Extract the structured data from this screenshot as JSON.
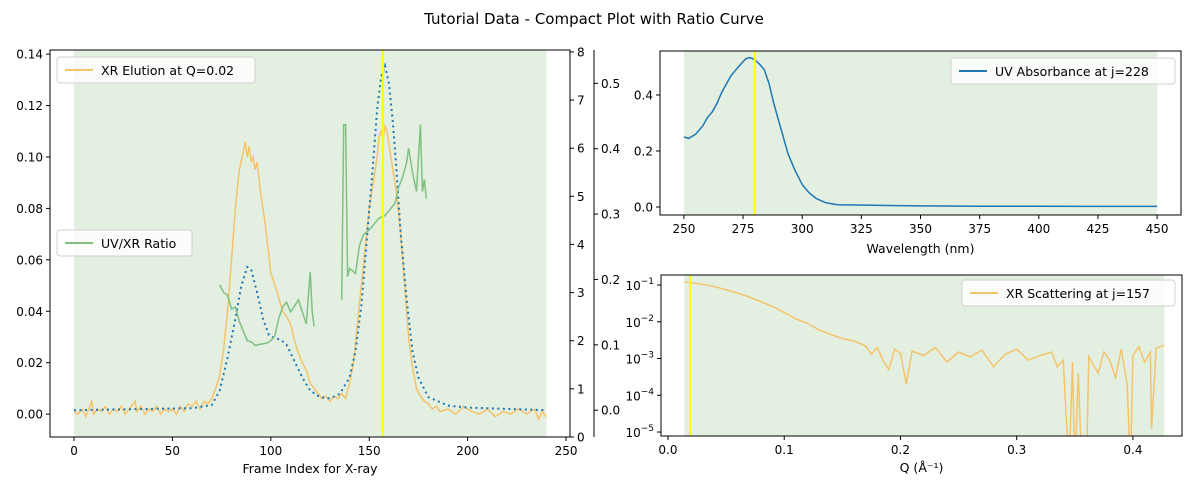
{
  "title": "Tutorial Data - Compact Plot with Ratio Curve",
  "colors": {
    "shade": "#e3efe1",
    "vline": "#ffff00",
    "xr": "#f5c36a",
    "uv": "#1f77b4",
    "ratio": "#80c080"
  },
  "chart_data": [
    {
      "type": "line",
      "xlabel": "Frame Index for X-ray",
      "xlim": [
        -12.2,
        252
      ],
      "ylim": [
        -0.0089,
        0.1416
      ],
      "xticks": [
        0,
        50,
        100,
        150,
        200,
        250
      ],
      "yticks": [
        "0.00",
        "0.02",
        "0.04",
        "0.06",
        "0.08",
        "0.10",
        "0.12",
        "0.14"
      ],
      "shaded_x": [
        0,
        240
      ],
      "vline_x": 157,
      "twin_axes": [
        {
          "name": "ratio",
          "ylim": [
            0,
            8.04
          ],
          "yticks": [
            "0",
            "1",
            "2",
            "3",
            "4",
            "5",
            "6",
            "7",
            "8"
          ]
        },
        {
          "name": "uv",
          "ylim": [
            -0.041,
            0.551
          ],
          "yticks": [
            "0.0",
            "0.1",
            "0.2",
            "0.3",
            "0.4",
            "0.5"
          ]
        }
      ],
      "series": [
        {
          "name": "XR Elution at Q=0.02",
          "axis": "left",
          "style": "solid",
          "x": [
            0,
            2,
            4,
            6,
            8,
            9,
            10,
            12,
            14,
            16,
            18,
            20,
            22,
            24,
            26,
            28,
            30,
            31,
            32,
            34,
            36,
            38,
            40,
            42,
            44,
            46,
            48,
            50,
            52,
            54,
            56,
            58,
            60,
            62,
            64,
            66,
            68,
            70,
            72,
            74,
            76,
            78,
            80,
            82,
            84,
            86,
            87,
            88,
            89,
            90,
            91,
            92,
            93,
            95,
            97,
            100,
            103,
            106,
            108,
            110,
            113,
            116,
            118,
            120,
            122,
            124,
            126,
            128,
            130,
            132,
            134,
            136,
            138,
            140,
            142,
            144,
            146,
            148,
            150,
            152,
            154,
            155,
            156,
            157,
            158,
            159,
            160,
            162,
            164,
            166,
            168,
            170,
            172,
            174,
            176,
            178,
            180,
            182,
            184,
            186,
            190,
            194,
            198,
            202,
            206,
            210,
            214,
            218,
            222,
            226,
            230,
            234,
            236,
            238,
            240
          ],
          "y": [
            0.001,
            0.0,
            0.002,
            -0.001,
            0.003,
            0.005,
            0.0,
            0.002,
            0.001,
            0.003,
            0.0,
            0.002,
            0.001,
            0.003,
            0.0,
            0.002,
            0.004,
            0.005,
            0.001,
            0.003,
            0.0,
            0.002,
            0.001,
            0.003,
            0.0,
            0.002,
            0.001,
            0.002,
            0.0,
            0.003,
            0.001,
            0.004,
            0.003,
            0.005,
            0.002,
            0.005,
            0.004,
            0.006,
            0.01,
            0.015,
            0.025,
            0.04,
            0.06,
            0.08,
            0.095,
            0.102,
            0.106,
            0.1,
            0.104,
            0.098,
            0.1,
            0.095,
            0.098,
            0.085,
            0.075,
            0.055,
            0.048,
            0.04,
            0.038,
            0.035,
            0.026,
            0.02,
            0.017,
            0.012,
            0.01,
            0.008,
            0.006,
            0.007,
            0.005,
            0.007,
            0.006,
            0.008,
            0.006,
            0.012,
            0.02,
            0.035,
            0.05,
            0.065,
            0.08,
            0.09,
            0.1,
            0.108,
            0.11,
            0.107,
            0.112,
            0.11,
            0.105,
            0.095,
            0.085,
            0.07,
            0.05,
            0.03,
            0.018,
            0.01,
            0.007,
            0.005,
            0.004,
            0.002,
            0.003,
            0.001,
            0.002,
            0.0,
            0.003,
            0.001,
            0.0,
            0.002,
            -0.001,
            0.001,
            0.0,
            0.002,
            0.0,
            0.002,
            -0.002,
            0.001,
            -0.001
          ]
        },
        {
          "name": "UV/XR Ratio",
          "axis": "ratio",
          "style": "solid",
          "x": [
            74,
            76,
            78,
            80,
            82,
            84,
            86,
            88,
            90,
            92,
            95,
            98,
            100,
            102,
            104,
            106,
            108,
            110,
            112,
            114,
            116,
            118,
            120,
            121,
            122,
            null,
            136,
            137,
            138,
            139,
            140,
            143,
            145,
            147,
            150,
            152,
            155,
            158,
            160,
            163,
            165,
            167,
            169,
            170,
            172,
            174,
            176,
            177,
            178,
            179
          ],
          "y": [
            3.16,
            3.0,
            2.95,
            2.66,
            2.7,
            2.4,
            2.2,
            2.0,
            1.98,
            1.9,
            1.93,
            1.95,
            2.0,
            2.1,
            2.46,
            2.7,
            2.8,
            2.6,
            2.72,
            2.85,
            2.6,
            2.35,
            3.43,
            2.6,
            2.3,
            null,
            2.85,
            6.49,
            6.49,
            3.33,
            3.5,
            3.4,
            3.97,
            4.2,
            4.3,
            4.4,
            4.55,
            4.6,
            4.7,
            4.85,
            5.2,
            5.4,
            5.7,
            6.0,
            5.5,
            5.1,
            6.49,
            5.1,
            5.35,
            4.95
          ]
        },
        {
          "name": "",
          "axis": "uv",
          "style": "dotted",
          "x": [
            0,
            60,
            70,
            74,
            78,
            82,
            85,
            88,
            90,
            93,
            96,
            99,
            102,
            105,
            108,
            112,
            116,
            120,
            125,
            130,
            135,
            140,
            143,
            146,
            149,
            152,
            154,
            156,
            158,
            160,
            162,
            164,
            166,
            169,
            172,
            175,
            180,
            190,
            200,
            240
          ],
          "y": [
            0.0,
            0.003,
            0.008,
            0.03,
            0.08,
            0.14,
            0.19,
            0.219,
            0.215,
            0.18,
            0.14,
            0.115,
            0.11,
            0.108,
            0.1,
            0.075,
            0.05,
            0.03,
            0.02,
            0.018,
            0.025,
            0.05,
            0.09,
            0.16,
            0.27,
            0.38,
            0.46,
            0.51,
            0.527,
            0.5,
            0.44,
            0.36,
            0.27,
            0.17,
            0.09,
            0.05,
            0.02,
            0.007,
            0.004,
            0.0
          ]
        }
      ],
      "legend": [
        {
          "label": "XR Elution at Q=0.02",
          "position": "upper-left"
        },
        {
          "label": "UV/XR Ratio",
          "position": "center-left"
        }
      ]
    },
    {
      "type": "line",
      "xlabel": "Wavelength (nm)",
      "xlim": [
        239.9,
        460.1
      ],
      "ylim": [
        -0.0286,
        0.557
      ],
      "xticks": [
        250,
        275,
        300,
        325,
        350,
        375,
        400,
        425,
        450
      ],
      "yticks": [
        "0.0",
        "0.2",
        "0.4"
      ],
      "shaded_x": [
        250,
        450
      ],
      "vline_x": 280,
      "series": [
        {
          "name": "UV Absorbance at j=228",
          "x": [
            250,
            252,
            255,
            258,
            260,
            262,
            264,
            266,
            268,
            270,
            272,
            274,
            276,
            277,
            278,
            279,
            280,
            282,
            284,
            286,
            288,
            290,
            292,
            294,
            297,
            300,
            303,
            306,
            310,
            315,
            330,
            350,
            375,
            400,
            425,
            450
          ],
          "y": [
            0.25,
            0.245,
            0.26,
            0.29,
            0.32,
            0.34,
            0.37,
            0.41,
            0.44,
            0.47,
            0.49,
            0.51,
            0.528,
            0.532,
            0.533,
            0.53,
            0.525,
            0.51,
            0.49,
            0.44,
            0.37,
            0.31,
            0.25,
            0.19,
            0.13,
            0.08,
            0.05,
            0.03,
            0.015,
            0.008,
            0.006,
            0.004,
            0.003,
            0.003,
            0.002,
            0.002
          ]
        }
      ],
      "legend": [
        {
          "label": "UV Absorbance at j=228",
          "position": "upper-right"
        }
      ]
    },
    {
      "type": "line",
      "xlabel": "Q (Å⁻¹)",
      "xlim": [
        -0.006,
        0.4422
      ],
      "ylim": [
        7.8e-06,
        0.187
      ],
      "yscale": "log",
      "xticks": [
        "0.0",
        "0.1",
        "0.2",
        "0.3",
        "0.4"
      ],
      "yticks": [
        -1,
        -2,
        -3,
        -4,
        -5
      ],
      "shaded_x": [
        0.014,
        0.427
      ],
      "vline_x": 0.019,
      "series": [
        {
          "name": "XR Scattering at j=157",
          "x": [
            0.014,
            0.02,
            0.03,
            0.04,
            0.05,
            0.06,
            0.07,
            0.08,
            0.09,
            0.1,
            0.11,
            0.12,
            0.13,
            0.14,
            0.15,
            0.16,
            0.17,
            0.175,
            0.18,
            0.185,
            0.19,
            0.195,
            0.2,
            0.205,
            0.21,
            0.22,
            0.23,
            0.24,
            0.25,
            0.26,
            0.27,
            0.28,
            0.29,
            0.3,
            0.31,
            0.32,
            0.33,
            0.335,
            0.34,
            0.345,
            0.348,
            0.35,
            0.353,
            0.356,
            0.36,
            0.362,
            0.37,
            0.375,
            0.38,
            0.385,
            0.39,
            0.395,
            0.398,
            0.4,
            0.405,
            0.41,
            0.415,
            0.416,
            0.42,
            0.427
          ],
          "y": [
            0.12,
            0.115,
            0.105,
            0.09,
            0.075,
            0.06,
            0.047,
            0.035,
            0.026,
            0.018,
            0.012,
            0.009,
            0.006,
            0.0045,
            0.0035,
            0.003,
            0.0022,
            0.0013,
            0.002,
            0.0009,
            0.0005,
            0.0018,
            0.0014,
            0.0002,
            0.0016,
            0.0012,
            0.002,
            0.0008,
            0.0015,
            0.0011,
            0.0017,
            0.0006,
            0.0013,
            0.0018,
            0.0009,
            0.0012,
            0.0015,
            0.0006,
            0.0009,
            1e-06,
            0.0008,
            1e-06,
            0.0004,
            1e-06,
            1e-06,
            0.0011,
            0.0004,
            0.0015,
            0.0009,
            0.0003,
            0.0018,
            0.0002,
            1e-06,
            0.0012,
            0.0021,
            0.0008,
            0.0015,
            1.2e-05,
            0.0019,
            0.0023
          ]
        }
      ],
      "legend": [
        {
          "label": "XR Scattering at j=157",
          "position": "upper-right"
        }
      ]
    }
  ]
}
